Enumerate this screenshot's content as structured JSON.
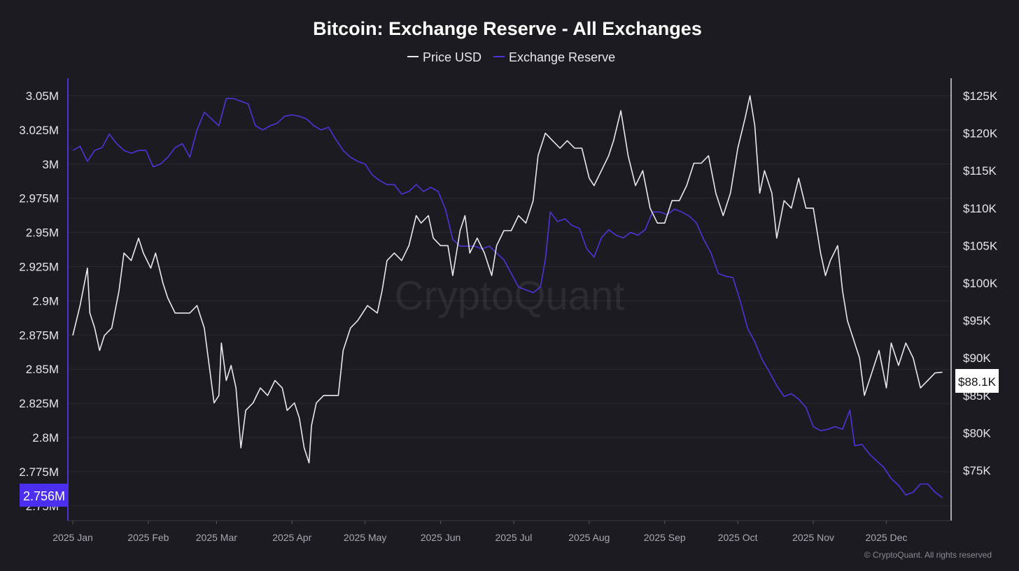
{
  "chart_data": {
    "type": "line",
    "title": "Bitcoin: Exchange Reserve - All Exchanges",
    "watermark": "CryptoQuant",
    "copyright": "© CryptoQuant. All rights reserved",
    "legend_position": "top-center",
    "grid": true,
    "colors": {
      "background": "#1b1b21",
      "price": "#e8e8ee",
      "reserve": "#4b35d8",
      "grid": "#2a2a33"
    },
    "x_axis": {
      "ticks": [
        "2025 Jan",
        "2025 Feb",
        "2025 Mar",
        "2025 Apr",
        "2025 May",
        "2025 Jun",
        "2025 Jul",
        "2025 Aug",
        "2025 Sep",
        "2025 Oct",
        "2025 Nov",
        "2025 Dec"
      ]
    },
    "y_left": {
      "ticks": [
        "2.75M",
        "2.775M",
        "2.8M",
        "2.825M",
        "2.85M",
        "2.875M",
        "2.9M",
        "2.925M",
        "2.95M",
        "2.975M",
        "3M",
        "3.025M",
        "3.05M"
      ],
      "min": 2.75,
      "max": 3.05,
      "unit": "M"
    },
    "y_right": {
      "ticks": [
        "$75K",
        "$80K",
        "$85K",
        "$90K",
        "$95K",
        "$100K",
        "$105K",
        "$110K",
        "$115K",
        "$120K",
        "$125K"
      ],
      "min": 75,
      "max": 125,
      "unit": "K"
    },
    "current_labels": {
      "reserve": "2.756M",
      "price": "$88.1K"
    },
    "series": [
      {
        "name": "Price USD",
        "axis": "right",
        "points": [
          [
            "2025-01-01",
            93
          ],
          [
            "2025-01-04",
            97
          ],
          [
            "2025-01-07",
            102
          ],
          [
            "2025-01-08",
            96
          ],
          [
            "2025-01-10",
            94
          ],
          [
            "2025-01-12",
            91
          ],
          [
            "2025-01-14",
            93
          ],
          [
            "2025-01-17",
            94
          ],
          [
            "2025-01-20",
            99
          ],
          [
            "2025-01-22",
            104
          ],
          [
            "2025-01-25",
            103
          ],
          [
            "2025-01-28",
            106
          ],
          [
            "2025-01-30",
            104
          ],
          [
            "2025-02-02",
            102
          ],
          [
            "2025-02-04",
            104
          ],
          [
            "2025-02-07",
            100
          ],
          [
            "2025-02-09",
            98
          ],
          [
            "2025-02-12",
            96
          ],
          [
            "2025-02-15",
            96
          ],
          [
            "2025-02-18",
            96
          ],
          [
            "2025-02-21",
            97
          ],
          [
            "2025-02-24",
            94
          ],
          [
            "2025-02-26",
            89
          ],
          [
            "2025-02-28",
            84
          ],
          [
            "2025-03-02",
            85
          ],
          [
            "2025-03-03",
            92
          ],
          [
            "2025-03-05",
            87
          ],
          [
            "2025-03-07",
            89
          ],
          [
            "2025-03-09",
            86
          ],
          [
            "2025-03-11",
            78
          ],
          [
            "2025-03-13",
            83
          ],
          [
            "2025-03-16",
            84
          ],
          [
            "2025-03-19",
            86
          ],
          [
            "2025-03-22",
            85
          ],
          [
            "2025-03-25",
            87
          ],
          [
            "2025-03-28",
            86
          ],
          [
            "2025-03-30",
            83
          ],
          [
            "2025-04-02",
            84
          ],
          [
            "2025-04-04",
            82
          ],
          [
            "2025-04-06",
            78
          ],
          [
            "2025-04-08",
            76
          ],
          [
            "2025-04-09",
            81
          ],
          [
            "2025-04-11",
            84
          ],
          [
            "2025-04-14",
            85
          ],
          [
            "2025-04-17",
            85
          ],
          [
            "2025-04-20",
            85
          ],
          [
            "2025-04-22",
            91
          ],
          [
            "2025-04-25",
            94
          ],
          [
            "2025-04-28",
            95
          ],
          [
            "2025-05-02",
            97
          ],
          [
            "2025-05-06",
            96
          ],
          [
            "2025-05-08",
            99
          ],
          [
            "2025-05-10",
            103
          ],
          [
            "2025-05-13",
            104
          ],
          [
            "2025-05-16",
            103
          ],
          [
            "2025-05-19",
            105
          ],
          [
            "2025-05-22",
            109
          ],
          [
            "2025-05-24",
            108
          ],
          [
            "2025-05-27",
            109
          ],
          [
            "2025-05-29",
            106
          ],
          [
            "2025-06-01",
            105
          ],
          [
            "2025-06-04",
            105
          ],
          [
            "2025-06-06",
            101
          ],
          [
            "2025-06-09",
            107
          ],
          [
            "2025-06-11",
            109
          ],
          [
            "2025-06-13",
            104
          ],
          [
            "2025-06-16",
            106
          ],
          [
            "2025-06-19",
            104
          ],
          [
            "2025-06-22",
            101
          ],
          [
            "2025-06-24",
            105
          ],
          [
            "2025-06-27",
            107
          ],
          [
            "2025-06-30",
            107
          ],
          [
            "2025-07-03",
            109
          ],
          [
            "2025-07-06",
            108
          ],
          [
            "2025-07-09",
            111
          ],
          [
            "2025-07-11",
            117
          ],
          [
            "2025-07-14",
            120
          ],
          [
            "2025-07-17",
            119
          ],
          [
            "2025-07-20",
            118
          ],
          [
            "2025-07-23",
            119
          ],
          [
            "2025-07-26",
            118
          ],
          [
            "2025-07-29",
            118
          ],
          [
            "2025-08-01",
            114
          ],
          [
            "2025-08-03",
            113
          ],
          [
            "2025-08-06",
            115
          ],
          [
            "2025-08-09",
            117
          ],
          [
            "2025-08-11",
            119
          ],
          [
            "2025-08-14",
            123
          ],
          [
            "2025-08-17",
            117
          ],
          [
            "2025-08-20",
            113
          ],
          [
            "2025-08-23",
            115
          ],
          [
            "2025-08-26",
            110
          ],
          [
            "2025-08-29",
            108
          ],
          [
            "2025-09-01",
            108
          ],
          [
            "2025-09-04",
            111
          ],
          [
            "2025-09-07",
            111
          ],
          [
            "2025-09-10",
            113
          ],
          [
            "2025-09-13",
            116
          ],
          [
            "2025-09-16",
            116
          ],
          [
            "2025-09-19",
            117
          ],
          [
            "2025-09-22",
            112
          ],
          [
            "2025-09-25",
            109
          ],
          [
            "2025-09-28",
            112
          ],
          [
            "2025-10-01",
            118
          ],
          [
            "2025-10-04",
            122
          ],
          [
            "2025-10-06",
            125
          ],
          [
            "2025-10-08",
            121
          ],
          [
            "2025-10-10",
            112
          ],
          [
            "2025-10-12",
            115
          ],
          [
            "2025-10-15",
            112
          ],
          [
            "2025-10-17",
            106
          ],
          [
            "2025-10-20",
            111
          ],
          [
            "2025-10-23",
            110
          ],
          [
            "2025-10-26",
            114
          ],
          [
            "2025-10-29",
            110
          ],
          [
            "2025-11-01",
            110
          ],
          [
            "2025-11-04",
            104
          ],
          [
            "2025-11-06",
            101
          ],
          [
            "2025-11-08",
            103
          ],
          [
            "2025-11-11",
            105
          ],
          [
            "2025-11-13",
            99
          ],
          [
            "2025-11-15",
            95
          ],
          [
            "2025-11-18",
            92
          ],
          [
            "2025-11-20",
            90
          ],
          [
            "2025-11-22",
            85
          ],
          [
            "2025-11-25",
            88
          ],
          [
            "2025-11-28",
            91
          ],
          [
            "2025-12-01",
            86
          ],
          [
            "2025-12-03",
            92
          ],
          [
            "2025-12-06",
            89
          ],
          [
            "2025-12-09",
            92
          ],
          [
            "2025-12-12",
            90
          ],
          [
            "2025-12-15",
            86
          ],
          [
            "2025-12-18",
            87
          ],
          [
            "2025-12-21",
            88
          ],
          [
            "2025-12-24",
            88.1
          ]
        ]
      },
      {
        "name": "Exchange Reserve",
        "axis": "left",
        "points": [
          [
            "2025-01-01",
            3.01
          ],
          [
            "2025-01-04",
            3.013
          ],
          [
            "2025-01-07",
            3.002
          ],
          [
            "2025-01-10",
            3.01
          ],
          [
            "2025-01-13",
            3.012
          ],
          [
            "2025-01-16",
            3.022
          ],
          [
            "2025-01-19",
            3.015
          ],
          [
            "2025-01-22",
            3.01
          ],
          [
            "2025-01-25",
            3.008
          ],
          [
            "2025-01-28",
            3.01
          ],
          [
            "2025-01-31",
            3.01
          ],
          [
            "2025-02-03",
            2.998
          ],
          [
            "2025-02-06",
            3.0
          ],
          [
            "2025-02-09",
            3.005
          ],
          [
            "2025-02-12",
            3.012
          ],
          [
            "2025-02-15",
            3.015
          ],
          [
            "2025-02-18",
            3.005
          ],
          [
            "2025-02-21",
            3.025
          ],
          [
            "2025-02-24",
            3.038
          ],
          [
            "2025-02-27",
            3.033
          ],
          [
            "2025-03-02",
            3.028
          ],
          [
            "2025-03-05",
            3.048
          ],
          [
            "2025-03-08",
            3.048
          ],
          [
            "2025-03-11",
            3.046
          ],
          [
            "2025-03-14",
            3.044
          ],
          [
            "2025-03-17",
            3.028
          ],
          [
            "2025-03-20",
            3.025
          ],
          [
            "2025-03-23",
            3.028
          ],
          [
            "2025-03-26",
            3.03
          ],
          [
            "2025-03-29",
            3.035
          ],
          [
            "2025-04-01",
            3.036
          ],
          [
            "2025-04-04",
            3.035
          ],
          [
            "2025-04-07",
            3.033
          ],
          [
            "2025-04-10",
            3.028
          ],
          [
            "2025-04-13",
            3.025
          ],
          [
            "2025-04-16",
            3.027
          ],
          [
            "2025-04-19",
            3.018
          ],
          [
            "2025-04-22",
            3.01
          ],
          [
            "2025-04-25",
            3.005
          ],
          [
            "2025-04-28",
            3.002
          ],
          [
            "2025-05-01",
            3.0
          ],
          [
            "2025-05-04",
            2.992
          ],
          [
            "2025-05-07",
            2.988
          ],
          [
            "2025-05-10",
            2.985
          ],
          [
            "2025-05-13",
            2.985
          ],
          [
            "2025-05-16",
            2.978
          ],
          [
            "2025-05-19",
            2.98
          ],
          [
            "2025-05-22",
            2.985
          ],
          [
            "2025-05-25",
            2.98
          ],
          [
            "2025-05-28",
            2.983
          ],
          [
            "2025-05-31",
            2.98
          ],
          [
            "2025-06-03",
            2.967
          ],
          [
            "2025-06-06",
            2.945
          ],
          [
            "2025-06-09",
            2.94
          ],
          [
            "2025-06-12",
            2.94
          ],
          [
            "2025-06-15",
            2.94
          ],
          [
            "2025-06-18",
            2.938
          ],
          [
            "2025-06-21",
            2.94
          ],
          [
            "2025-06-24",
            2.935
          ],
          [
            "2025-06-27",
            2.93
          ],
          [
            "2025-06-30",
            2.92
          ],
          [
            "2025-07-03",
            2.91
          ],
          [
            "2025-07-06",
            2.908
          ],
          [
            "2025-07-09",
            2.906
          ],
          [
            "2025-07-12",
            2.91
          ],
          [
            "2025-07-14",
            2.93
          ],
          [
            "2025-07-16",
            2.965
          ],
          [
            "2025-07-19",
            2.958
          ],
          [
            "2025-07-22",
            2.96
          ],
          [
            "2025-07-25",
            2.955
          ],
          [
            "2025-07-28",
            2.953
          ],
          [
            "2025-07-31",
            2.938
          ],
          [
            "2025-08-03",
            2.932
          ],
          [
            "2025-08-06",
            2.946
          ],
          [
            "2025-08-09",
            2.952
          ],
          [
            "2025-08-12",
            2.948
          ],
          [
            "2025-08-15",
            2.946
          ],
          [
            "2025-08-18",
            2.95
          ],
          [
            "2025-08-21",
            2.948
          ],
          [
            "2025-08-24",
            2.952
          ],
          [
            "2025-08-27",
            2.965
          ],
          [
            "2025-08-30",
            2.965
          ],
          [
            "2025-09-02",
            2.963
          ],
          [
            "2025-09-05",
            2.967
          ],
          [
            "2025-09-08",
            2.965
          ],
          [
            "2025-09-11",
            2.962
          ],
          [
            "2025-09-14",
            2.957
          ],
          [
            "2025-09-17",
            2.945
          ],
          [
            "2025-09-20",
            2.935
          ],
          [
            "2025-09-23",
            2.92
          ],
          [
            "2025-09-26",
            2.918
          ],
          [
            "2025-09-29",
            2.917
          ],
          [
            "2025-10-02",
            2.9
          ],
          [
            "2025-10-05",
            2.88
          ],
          [
            "2025-10-08",
            2.87
          ],
          [
            "2025-10-11",
            2.857
          ],
          [
            "2025-10-14",
            2.848
          ],
          [
            "2025-10-17",
            2.838
          ],
          [
            "2025-10-20",
            2.83
          ],
          [
            "2025-10-23",
            2.832
          ],
          [
            "2025-10-26",
            2.828
          ],
          [
            "2025-10-29",
            2.822
          ],
          [
            "2025-11-01",
            2.808
          ],
          [
            "2025-11-04",
            2.805
          ],
          [
            "2025-11-07",
            2.806
          ],
          [
            "2025-11-10",
            2.808
          ],
          [
            "2025-11-13",
            2.806
          ],
          [
            "2025-11-16",
            2.82
          ],
          [
            "2025-11-18",
            2.794
          ],
          [
            "2025-11-21",
            2.795
          ],
          [
            "2025-11-24",
            2.788
          ],
          [
            "2025-11-27",
            2.783
          ],
          [
            "2025-11-30",
            2.778
          ],
          [
            "2025-12-03",
            2.77
          ],
          [
            "2025-12-06",
            2.765
          ],
          [
            "2025-12-09",
            2.758
          ],
          [
            "2025-12-12",
            2.76
          ],
          [
            "2025-12-15",
            2.766
          ],
          [
            "2025-12-18",
            2.766
          ],
          [
            "2025-12-21",
            2.76
          ],
          [
            "2025-12-24",
            2.756
          ]
        ]
      }
    ]
  }
}
